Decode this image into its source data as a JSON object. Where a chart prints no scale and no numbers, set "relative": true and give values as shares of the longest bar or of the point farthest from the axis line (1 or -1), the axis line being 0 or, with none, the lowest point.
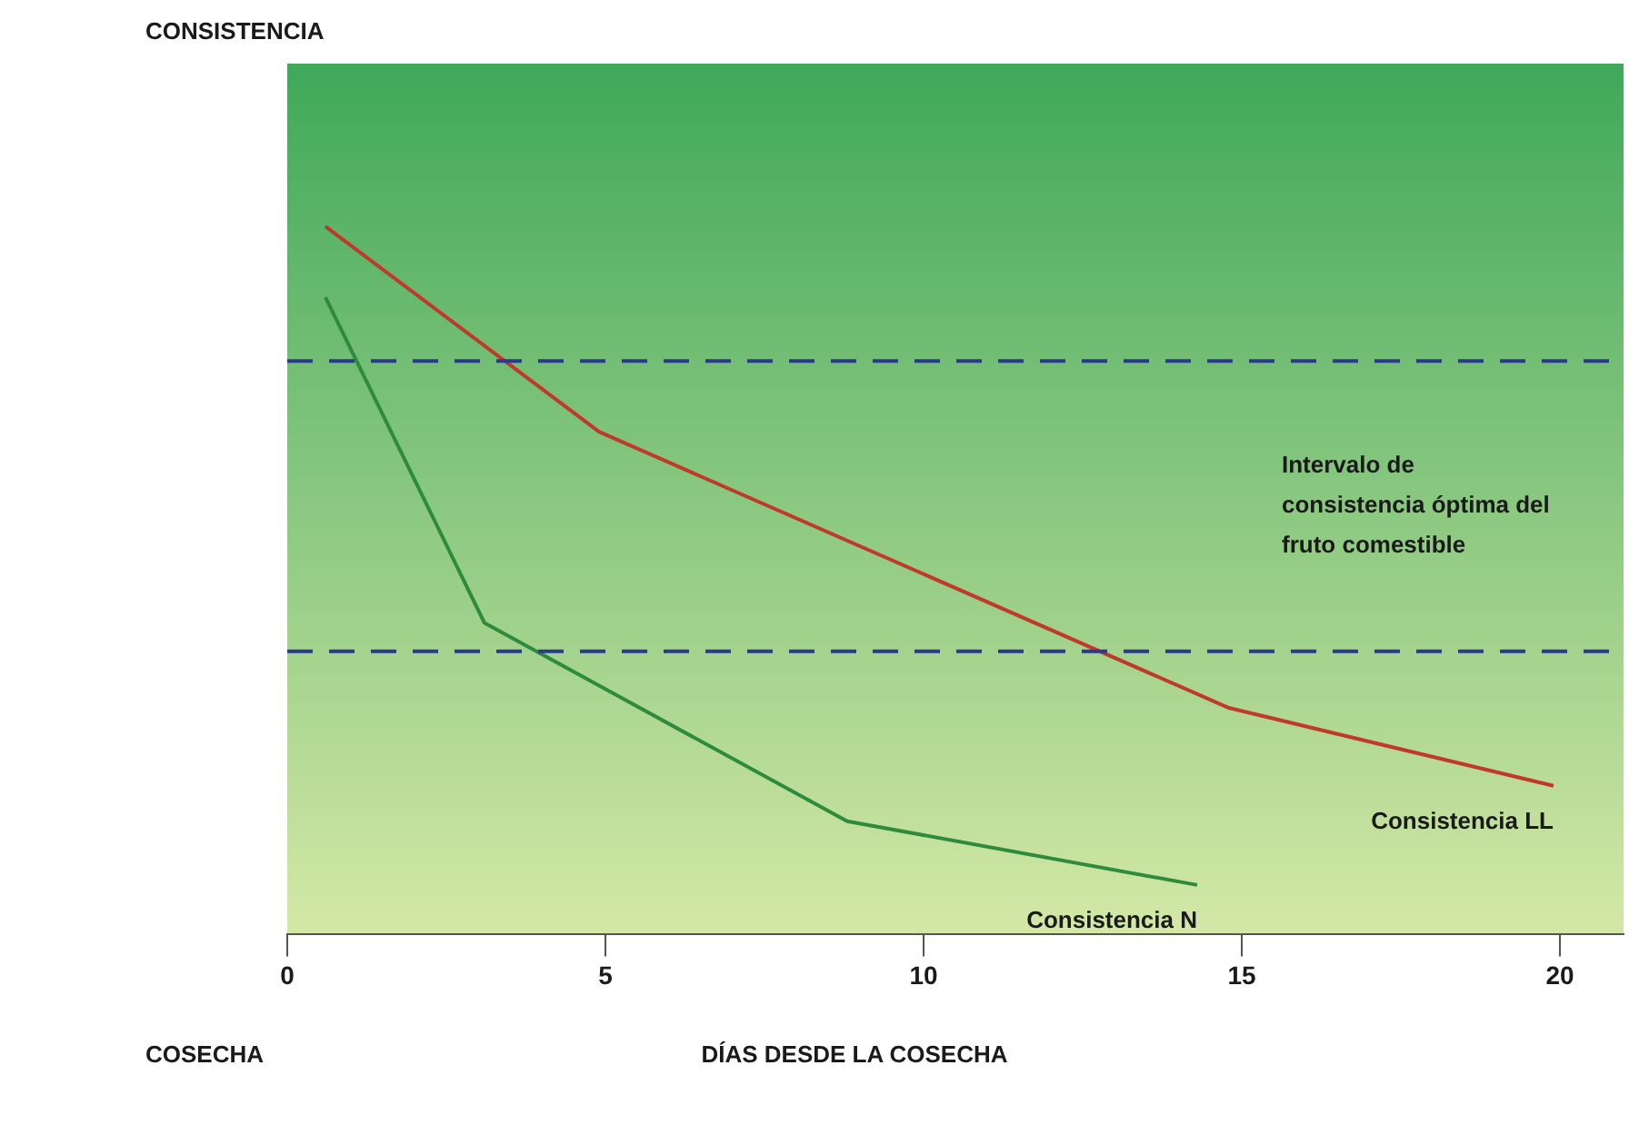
{
  "chart_data": {
    "type": "line",
    "relative": true,
    "xlabel": "DÍAS DESDE LA COSECHA",
    "xlim": [
      0,
      21
    ],
    "xticks": [
      0,
      5,
      10,
      15,
      20
    ],
    "grid": false,
    "legend": false,
    "marker": "none",
    "line_style": "solid",
    "series": [
      {
        "name": "Consistencia LL",
        "color": "#c0392b",
        "x": [
          0.6,
          4.9,
          14.8,
          19.9
        ],
        "values": [
          1,
          0.71,
          0.32,
          0.21
        ]
      },
      {
        "name": "Consistencia N",
        "color": "#2e8b3e",
        "x": [
          0.6,
          3.1,
          8.8,
          14.3
        ],
        "values": [
          0.9,
          0.44,
          0.16,
          0.07
        ]
      }
    ],
    "ref_lines": [
      {
        "axis": "y",
        "value": 0.81,
        "color": "#2b3a8c",
        "line_style": "dashed"
      },
      {
        "axis": "y",
        "value": 0.4,
        "color": "#2b3a8c",
        "line_style": "dashed"
      }
    ],
    "annotations": [
      "Intervalo de consistencia óptima del fruto comestible",
      "COSECHA",
      "CONSISTENCIA"
    ]
  }
}
